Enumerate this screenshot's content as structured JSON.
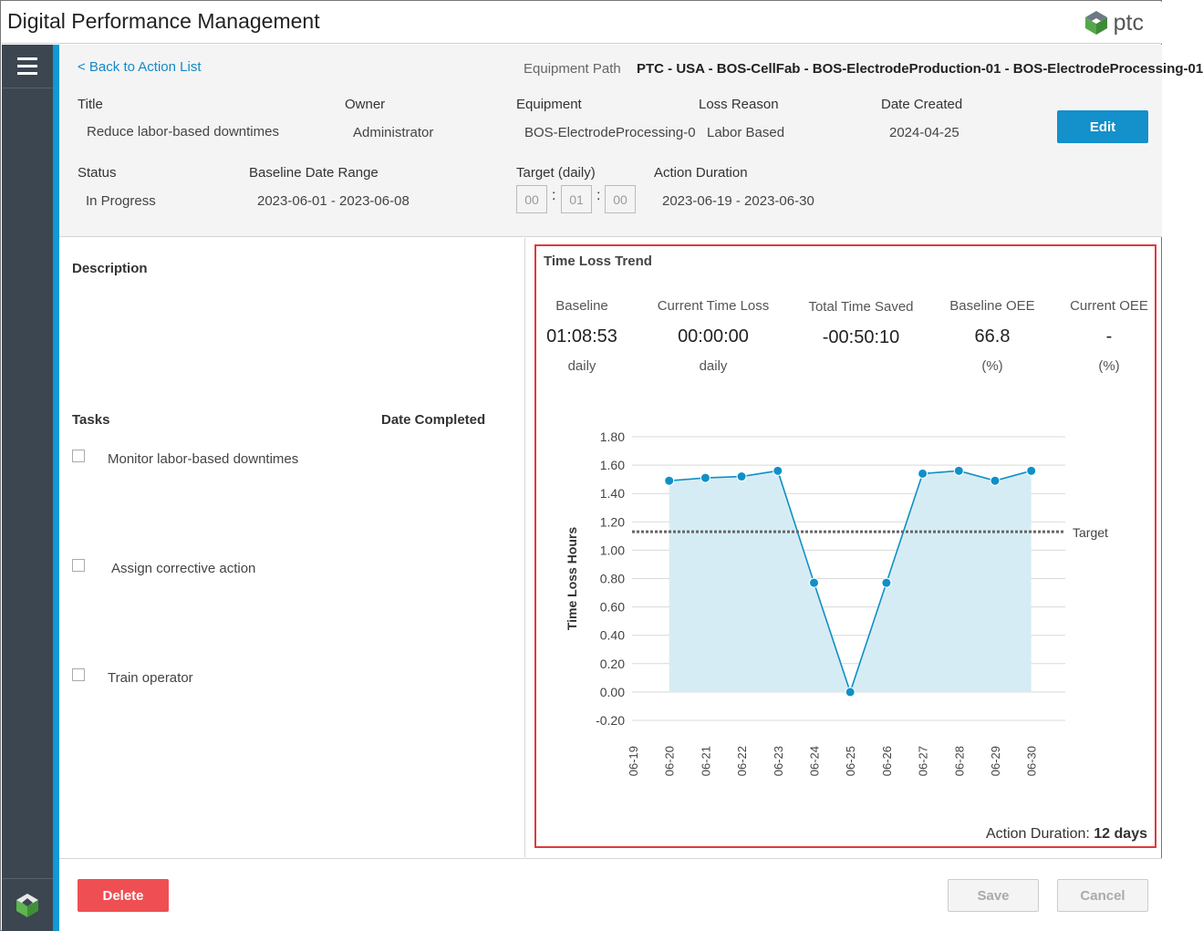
{
  "app": {
    "title": "Digital Performance Management",
    "logo_text": "ptc",
    "logo_icon": "ptc-logo-icon"
  },
  "sidebar": {
    "menu_icon": "hamburger-menu-icon",
    "bottom_icon": "thingworx-logo-icon"
  },
  "header": {
    "back_link": "< Back to Action List",
    "equipment_path_label": "Equipment Path",
    "equipment_path_value": "PTC - USA - BOS-CellFab - BOS-ElectrodeProduction-01 - BOS-ElectrodeProcessing-01",
    "title_label": "Title",
    "title_value": "Reduce labor-based downtimes",
    "owner_label": "Owner",
    "owner_value": "Administrator",
    "equipment_label": "Equipment",
    "equipment_value": "BOS-ElectrodeProcessing-0",
    "loss_reason_label": "Loss Reason",
    "loss_reason_value": "Labor Based",
    "date_created_label": "Date Created",
    "date_created_value": "2024-04-25",
    "edit_button": "Edit",
    "status_label": "Status",
    "status_value": "In Progress",
    "baseline_range_label": "Baseline Date Range",
    "baseline_range_value": "2023-06-01 - 2023-06-08",
    "target_label": "Target (daily)",
    "target_hh": "00",
    "target_mm": "01",
    "target_ss": "00",
    "action_duration_label": "Action Duration",
    "action_duration_value": "2023-06-19 - 2023-06-30"
  },
  "left": {
    "description_label": "Description",
    "tasks_label": "Tasks",
    "date_completed_label": "Date Completed",
    "tasks": [
      {
        "label": "Monitor labor-based downtimes",
        "checked": false
      },
      {
        "label": "Assign corrective action",
        "checked": false
      },
      {
        "label": "Train operator",
        "checked": false
      }
    ]
  },
  "trend": {
    "title": "Time Loss Trend",
    "metrics": [
      {
        "title": "Baseline",
        "value": "01:08:53",
        "unit": "daily"
      },
      {
        "title": "Current Time Loss",
        "value": "00:00:00",
        "unit": "daily"
      },
      {
        "title": "Total Time Saved",
        "value": "-00:50:10",
        "unit": ""
      },
      {
        "title": "Baseline OEE",
        "value": "66.8",
        "unit": "(%)"
      },
      {
        "title": "Current OEE",
        "value": "-",
        "unit": "(%)"
      }
    ],
    "action_duration_label": "Action Duration:",
    "action_duration_value": "12 days"
  },
  "chart_data": {
    "type": "line",
    "ylabel": "Time Loss Hours",
    "ylim": [
      -0.2,
      1.8
    ],
    "yticks": [
      "1.80",
      "1.60",
      "1.40",
      "1.20",
      "1.00",
      "0.80",
      "0.60",
      "0.40",
      "0.20",
      "0.00",
      "-0.20"
    ],
    "categories": [
      "06-19",
      "06-20",
      "06-21",
      "06-22",
      "06-23",
      "06-24",
      "06-25",
      "06-26",
      "06-27",
      "06-28",
      "06-29",
      "06-30"
    ],
    "series": [
      {
        "values": [
          null,
          1.49,
          1.51,
          1.52,
          1.56,
          0.77,
          0.0,
          0.77,
          1.54,
          1.56,
          1.49,
          1.56
        ],
        "color": "#0e90c8",
        "fill": "#d6ecf4"
      }
    ],
    "target": {
      "label": "Target",
      "value": 1.13
    },
    "grid": true
  },
  "footer": {
    "delete_button": "Delete",
    "save_button": "Save",
    "cancel_button": "Cancel"
  }
}
